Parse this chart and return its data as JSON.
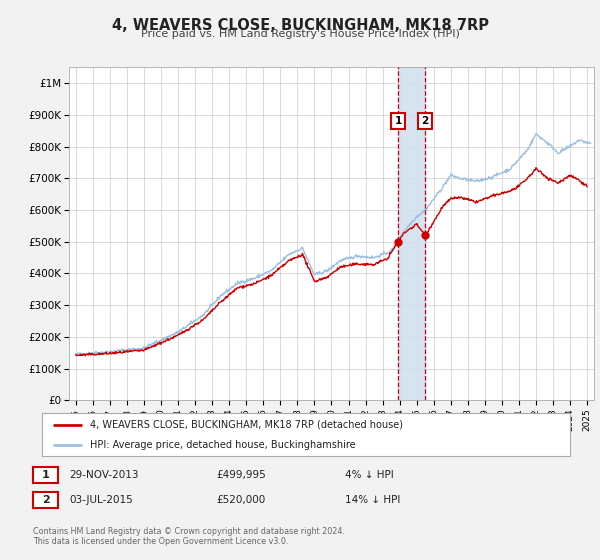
{
  "title": "4, WEAVERS CLOSE, BUCKINGHAM, MK18 7RP",
  "subtitle": "Price paid vs. HM Land Registry's House Price Index (HPI)",
  "ylim": [
    0,
    1050000
  ],
  "yticks": [
    0,
    100000,
    200000,
    300000,
    400000,
    500000,
    600000,
    700000,
    800000,
    900000,
    1000000
  ],
  "ytick_labels": [
    "£0",
    "£100K",
    "£200K",
    "£300K",
    "£400K",
    "£500K",
    "£600K",
    "£700K",
    "£800K",
    "£900K",
    "£1M"
  ],
  "xlim_start": 1994.6,
  "xlim_end": 2025.4,
  "hpi_color": "#9dbfe0",
  "price_color": "#cc0000",
  "sale1_date": 2013.91,
  "sale1_price": 499995,
  "sale2_date": 2015.5,
  "sale2_price": 520000,
  "sale1_label": "29-NOV-2013",
  "sale1_amount": "£499,995",
  "sale1_hpi": "4% ↓ HPI",
  "sale2_label": "03-JUL-2015",
  "sale2_amount": "£520,000",
  "sale2_hpi": "14% ↓ HPI",
  "legend1": "4, WEAVERS CLOSE, BUCKINGHAM, MK18 7RP (detached house)",
  "legend2": "HPI: Average price, detached house, Buckinghamshire",
  "footer1": "Contains HM Land Registry data © Crown copyright and database right 2024.",
  "footer2": "This data is licensed under the Open Government Licence v3.0.",
  "bg_color": "#f2f2f2",
  "plot_bg_color": "#ffffff",
  "grid_color": "#cccccc",
  "shade_color": "#cfe0f0"
}
